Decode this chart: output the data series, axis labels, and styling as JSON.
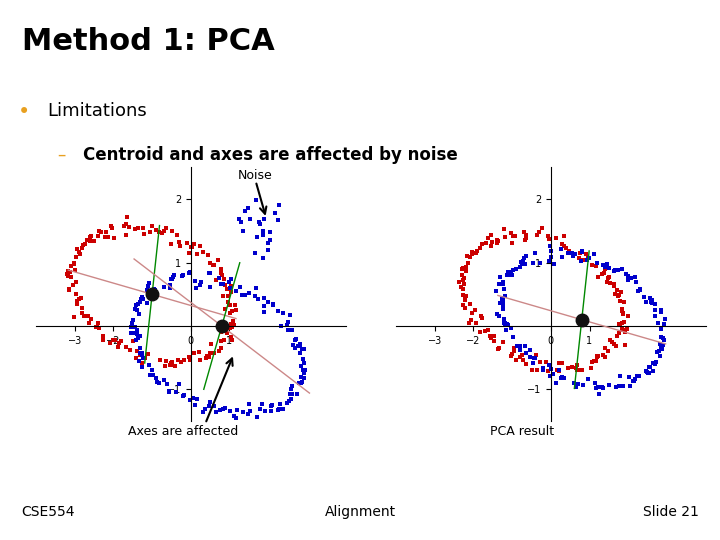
{
  "title": "Method 1: PCA",
  "title_fontsize": 22,
  "title_fontweight": "bold",
  "bg_color": "#ffffff",
  "gold_line_color": "#c8a84b",
  "bullet_color": "#e8a020",
  "bullet_text": "Limitations",
  "sub_bullet_color": "#e8a020",
  "sub_bullet_text": "Centroid and axes are affected by noise",
  "footer_left": "CSE554",
  "footer_center": "Alignment",
  "footer_right": "Slide 21",
  "label_axes_affected": "Axes are affected",
  "label_noise": "Noise",
  "label_pca_result": "PCA result",
  "red_color": "#cc0000",
  "blue_color": "#0000cc",
  "green_color": "#008800",
  "salmon_color": "#cc8888",
  "centroid_color": "#111111",
  "text_fontsize": 13,
  "sub_text_fontsize": 12,
  "footer_fontsize": 10
}
